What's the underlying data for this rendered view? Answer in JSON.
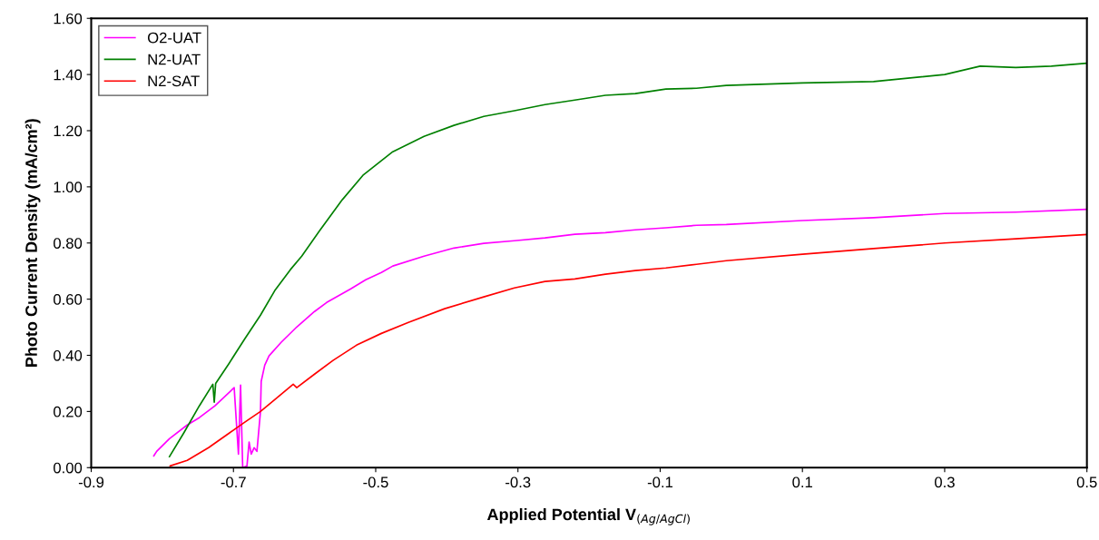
{
  "chart_data": {
    "type": "line",
    "xlabel": "Applied Potential V$_{(Ag/AgCl)}$",
    "ylabel": "Photo Current Density (mA/cm²)",
    "xlim": [
      -0.9,
      0.5
    ],
    "xticks": [
      -0.9,
      -0.7,
      -0.5,
      -0.3,
      -0.1,
      0.1,
      0.3,
      0.5
    ],
    "ylim": [
      0,
      1.6
    ],
    "yticks": [
      {
        "value": 0,
        "label": "0.00"
      },
      {
        "value": 0.2,
        "label": "0.20"
      },
      {
        "value": 0.4,
        "label": "0.40"
      },
      {
        "value": 0.6,
        "label": "0.60"
      },
      {
        "value": 0.8,
        "label": "0.80"
      },
      {
        "value": 1.0,
        "label": "1.00"
      },
      {
        "value": 1.2,
        "label": "1.20"
      },
      {
        "value": 1.4,
        "label": "1.40"
      },
      {
        "value": 1.6,
        "label": "1.60"
      }
    ],
    "grid": false,
    "legend": "top left",
    "marker": "none",
    "line_style": "solid",
    "series": [
      {
        "name": "O2-UAT",
        "color": "#ff00ff",
        "x": [
          -0.812,
          -0.808,
          -0.79,
          -0.765,
          -0.748,
          -0.726,
          -0.699,
          -0.693,
          -0.69,
          -0.687,
          -0.681,
          -0.678,
          -0.675,
          -0.671,
          -0.667,
          -0.662,
          -0.661,
          -0.656,
          -0.65,
          -0.633,
          -0.611,
          -0.586,
          -0.569,
          -0.535,
          -0.514,
          -0.492,
          -0.476,
          -0.432,
          -0.39,
          -0.348,
          -0.305,
          -0.262,
          -0.22,
          -0.177,
          -0.135,
          -0.092,
          -0.049,
          -0.007,
          0.1,
          0.2,
          0.3,
          0.4,
          0.5
        ],
        "values": [
          0.042,
          0.058,
          0.103,
          0.152,
          0.178,
          0.22,
          0.285,
          0.048,
          0.294,
          0,
          0.006,
          0.091,
          0.048,
          0.071,
          0.058,
          0.2,
          0.307,
          0.365,
          0.398,
          0.446,
          0.501,
          0.556,
          0.588,
          0.637,
          0.669,
          0.695,
          0.718,
          0.753,
          0.782,
          0.799,
          0.808,
          0.818,
          0.831,
          0.837,
          0.847,
          0.854,
          0.863,
          0.866,
          0.88,
          0.89,
          0.905,
          0.91,
          0.92
        ]
      },
      {
        "name": "N2-UAT",
        "color": "#008000",
        "x": [
          -0.79,
          -0.77,
          -0.748,
          -0.729,
          -0.727,
          -0.725,
          -0.706,
          -0.684,
          -0.662,
          -0.642,
          -0.62,
          -0.604,
          -0.578,
          -0.547,
          -0.518,
          -0.476,
          -0.432,
          -0.39,
          -0.348,
          -0.305,
          -0.262,
          -0.22,
          -0.177,
          -0.135,
          -0.092,
          -0.049,
          -0.007,
          0.1,
          0.2,
          0.3,
          0.35,
          0.4,
          0.45,
          0.5
        ],
        "values": [
          0.039,
          0.123,
          0.22,
          0.297,
          0.233,
          0.3,
          0.372,
          0.459,
          0.543,
          0.63,
          0.705,
          0.753,
          0.847,
          0.954,
          1.041,
          1.125,
          1.18,
          1.219,
          1.251,
          1.271,
          1.293,
          1.309,
          1.326,
          1.332,
          1.348,
          1.351,
          1.361,
          1.37,
          1.375,
          1.4,
          1.43,
          1.425,
          1.43,
          1.44
        ]
      },
      {
        "name": "N2-SAT",
        "color": "#ff0000",
        "x": [
          -0.789,
          -0.765,
          -0.735,
          -0.706,
          -0.684,
          -0.662,
          -0.642,
          -0.616,
          -0.611,
          -0.586,
          -0.56,
          -0.527,
          -0.492,
          -0.454,
          -0.403,
          -0.348,
          -0.305,
          -0.262,
          -0.22,
          -0.177,
          -0.135,
          -0.092,
          -0.049,
          -0.007,
          0.1,
          0.2,
          0.3,
          0.4,
          0.5
        ],
        "values": [
          0.006,
          0.026,
          0.071,
          0.123,
          0.162,
          0.2,
          0.242,
          0.297,
          0.285,
          0.333,
          0.382,
          0.436,
          0.478,
          0.517,
          0.566,
          0.608,
          0.64,
          0.663,
          0.672,
          0.689,
          0.702,
          0.711,
          0.724,
          0.737,
          0.76,
          0.78,
          0.8,
          0.815,
          0.83
        ]
      }
    ]
  }
}
